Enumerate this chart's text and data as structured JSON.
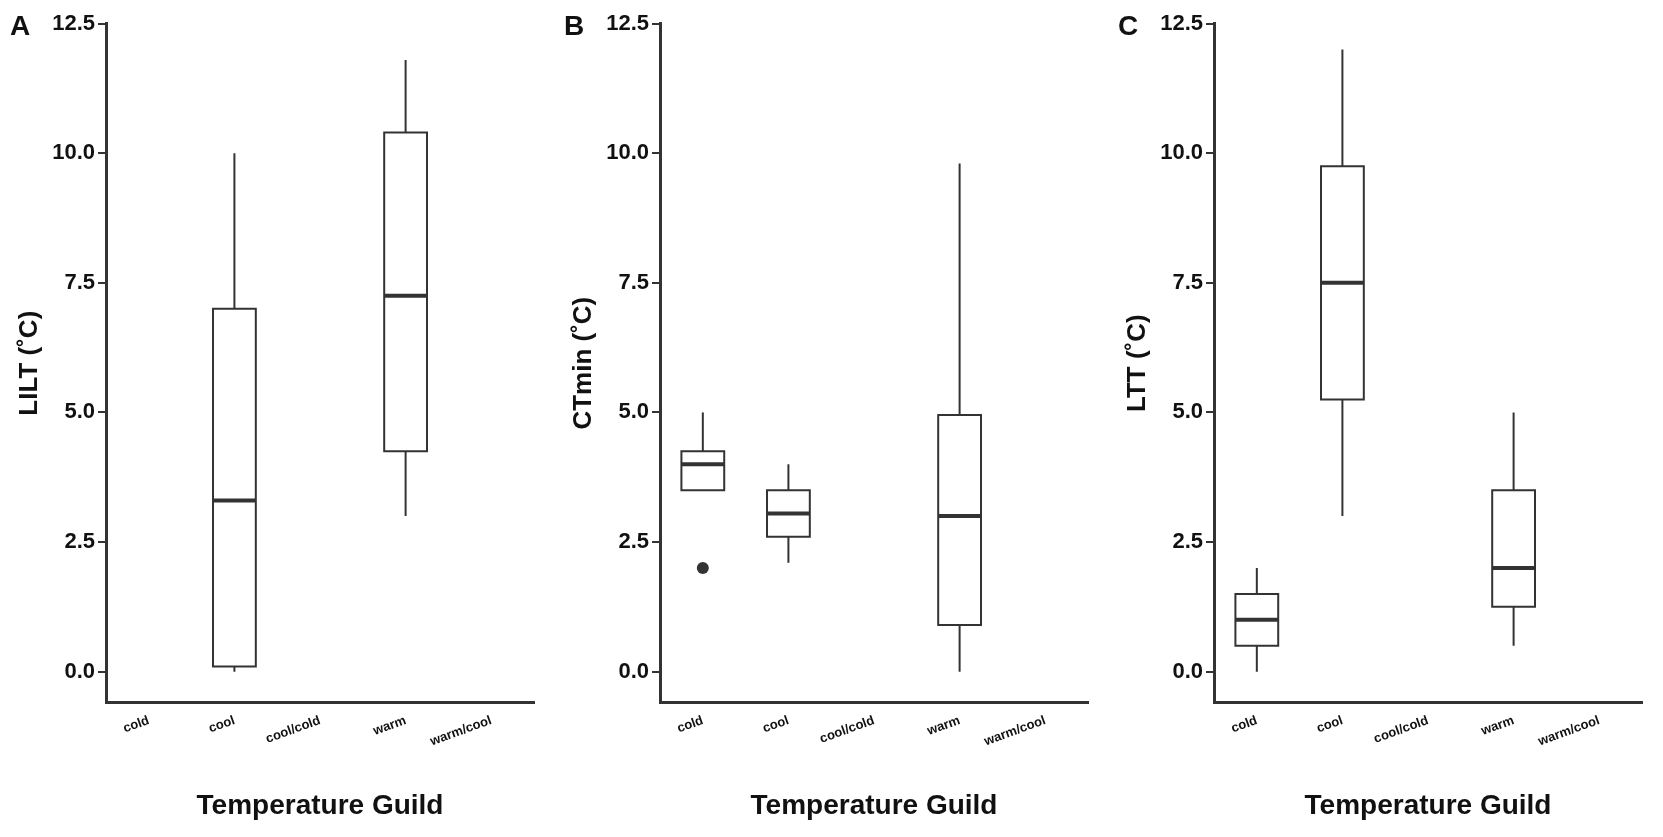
{
  "chart_data": [
    {
      "type": "box",
      "title": "A",
      "xlabel": "Temperature Guild",
      "ylabel": "LILT (˚C)",
      "categories": [
        "cold",
        "cool",
        "cool/cold",
        "warm",
        "warm/cool"
      ],
      "ylim": [
        -0.6,
        12.5
      ],
      "yticks": [
        {
          "value": 0,
          "label": "0.0"
        },
        {
          "value": 2.5,
          "label": "2.5"
        },
        {
          "value": 5,
          "label": "5.0"
        },
        {
          "value": 7.5,
          "label": "7.5"
        },
        {
          "value": 10,
          "label": "10.0"
        },
        {
          "value": 12.5,
          "label": "12.5"
        }
      ],
      "grid": false,
      "legend": false,
      "boxes": [
        null,
        {
          "low": 0,
          "q1": 0.1,
          "median": 3.3,
          "q3": 7.0,
          "high": 10.0
        },
        null,
        {
          "low": 3.0,
          "q1": 4.25,
          "median": 7.25,
          "q3": 10.4,
          "high": 11.8
        },
        null
      ]
    },
    {
      "type": "box",
      "title": "B",
      "xlabel": "Temperature Guild",
      "ylabel": "CTmin (˚C)",
      "categories": [
        "cold",
        "cool",
        "cool/cold",
        "warm",
        "warm/cool"
      ],
      "ylim": [
        -0.6,
        12.5
      ],
      "yticks": [
        {
          "value": 0,
          "label": "0.0"
        },
        {
          "value": 2.5,
          "label": "2.5"
        },
        {
          "value": 5,
          "label": "5.0"
        },
        {
          "value": 7.5,
          "label": "7.5"
        },
        {
          "value": 10,
          "label": "10.0"
        },
        {
          "value": 12.5,
          "label": "12.5"
        }
      ],
      "grid": false,
      "legend": false,
      "boxes": [
        {
          "low": 3.5,
          "q1": 3.5,
          "median": 4.0,
          "q3": 4.25,
          "high": 5.0,
          "outliers": [
            2.0
          ]
        },
        {
          "low": 2.1,
          "q1": 2.6,
          "median": 3.05,
          "q3": 3.5,
          "high": 4.0
        },
        null,
        {
          "low": 0,
          "q1": 0.9,
          "median": 3.0,
          "q3": 4.95,
          "high": 9.8
        },
        null
      ]
    },
    {
      "type": "box",
      "title": "C",
      "xlabel": "Temperature Guild",
      "ylabel": "LTT (˚C)",
      "categories": [
        "cold",
        "cool",
        "cool/cold",
        "warm",
        "warm/cool"
      ],
      "ylim": [
        -0.6,
        12.5
      ],
      "yticks": [
        {
          "value": 0,
          "label": "0.0"
        },
        {
          "value": 2.5,
          "label": "2.5"
        },
        {
          "value": 5,
          "label": "5.0"
        },
        {
          "value": 7.5,
          "label": "7.5"
        },
        {
          "value": 10,
          "label": "10.0"
        },
        {
          "value": 12.5,
          "label": "12.5"
        }
      ],
      "grid": false,
      "legend": false,
      "boxes": [
        {
          "low": 0,
          "q1": 0.5,
          "median": 1.0,
          "q3": 1.5,
          "high": 2.0
        },
        {
          "low": 3.0,
          "q1": 5.25,
          "median": 7.5,
          "q3": 9.75,
          "high": 12.0
        },
        null,
        {
          "low": 0.5,
          "q1": 1.25,
          "median": 2.0,
          "q3": 3.5,
          "high": 5.0
        },
        null
      ]
    }
  ]
}
